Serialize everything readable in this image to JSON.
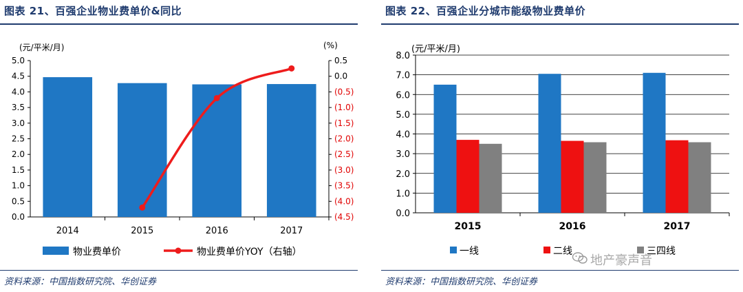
{
  "charts": [
    {
      "title": "图表 21、百强企业物业费单价&同比",
      "source": "资料来源：中国指数研究院、华创证券",
      "chart_data": {
        "type": "bar",
        "categories": [
          "2014",
          "2015",
          "2016",
          "2017"
        ],
        "series": [
          {
            "name": "物业费单价",
            "type": "bar",
            "axis": "left",
            "color": "#1f77c4",
            "values": [
              4.47,
              4.28,
              4.24,
              4.25
            ]
          },
          {
            "name": "物业费单价YOY（右轴）",
            "type": "line",
            "axis": "right",
            "color": "#ee1c1c",
            "values": [
              null,
              -4.2,
              -0.7,
              0.25
            ]
          }
        ],
        "yunit_left": "(元/平米/月)",
        "yunit_right": "(%)",
        "ylim_left": [
          0,
          5
        ],
        "yticks_left": [
          "0.0",
          "0.5",
          "1.0",
          "1.5",
          "2.0",
          "2.5",
          "3.0",
          "3.5",
          "4.0",
          "4.5",
          "5.0"
        ],
        "ylim_right": [
          -4.5,
          0.5
        ],
        "yticks_right": [
          "(4.5)",
          "(4.0)",
          "(3.5)",
          "(3.0)",
          "(2.5)",
          "(2.0)",
          "(1.5)",
          "(1.0)",
          "(0.5)",
          "0.0",
          "0.5"
        ],
        "grid": false,
        "legend": "bottom"
      }
    },
    {
      "title": "图表 22、百强企业分城市能级物业费单价",
      "source": "资料来源：中国指数研究院、华创证券",
      "chart_data": {
        "type": "bar",
        "categories": [
          "2015",
          "2016",
          "2017"
        ],
        "series": [
          {
            "name": "一线",
            "color": "#1f77c4",
            "values": [
              6.5,
              7.05,
              7.1
            ]
          },
          {
            "name": "二线",
            "color": "#ee1111",
            "values": [
              3.7,
              3.65,
              3.68
            ]
          },
          {
            "name": "三四线",
            "color": "#808080",
            "values": [
              3.5,
              3.58,
              3.58
            ]
          }
        ],
        "yunit": "(元/平米/月)",
        "ylim": [
          0,
          8
        ],
        "yticks": [
          "0.0",
          "1.0",
          "2.0",
          "3.0",
          "4.0",
          "5.0",
          "6.0",
          "7.0",
          "8.0"
        ],
        "grid": true,
        "legend": "bottom"
      }
    }
  ],
  "watermark": "地产豪声音",
  "watermark_icon": "wechat-icon"
}
